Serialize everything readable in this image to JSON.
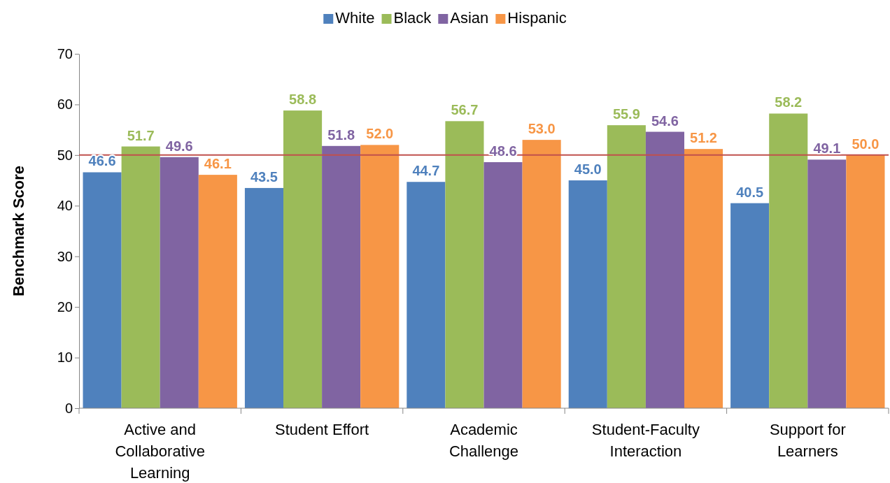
{
  "chart_data": {
    "type": "bar",
    "ylabel": "Benchmark Score",
    "categories": [
      "Active and Collaborative Learning",
      "Student Effort",
      "Academic Challenge",
      "Student-Faculty Interaction",
      "Support for Learners"
    ],
    "series": [
      {
        "name": "White",
        "color": "#4f81bd",
        "values": [
          46.6,
          43.5,
          44.7,
          45.0,
          40.5
        ],
        "value_labels": [
          "46.6",
          "43.5",
          "44.7",
          "45.0",
          "40.5"
        ]
      },
      {
        "name": "Black",
        "color": "#9bbb59",
        "values": [
          51.7,
          58.8,
          56.7,
          55.9,
          58.2
        ],
        "value_labels": [
          "51.7",
          "58.8",
          "56.7",
          "55.9",
          "58.2"
        ]
      },
      {
        "name": "Asian",
        "color": "#8064a2",
        "values": [
          49.6,
          51.8,
          48.6,
          54.6,
          49.1
        ],
        "value_labels": [
          "49.6",
          "51.8",
          "48.6",
          "54.6",
          "49.1"
        ]
      },
      {
        "name": "Hispanic",
        "color": "#f79646",
        "values": [
          46.1,
          52.0,
          53.0,
          51.2,
          50.0
        ],
        "value_labels": [
          "46.1",
          "52.0",
          "53.0",
          "51.2",
          "50.0"
        ]
      }
    ],
    "ylim": [
      0,
      70
    ],
    "yticks": [
      0,
      10,
      20,
      30,
      40,
      50,
      60,
      70
    ],
    "ref_lines": [
      {
        "axis": "y",
        "value": 50,
        "color": "#c0504d"
      }
    ],
    "legend": "top",
    "grid": false
  }
}
